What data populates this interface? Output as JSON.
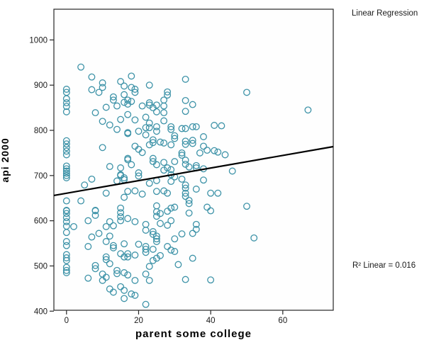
{
  "annotations": {
    "title": "Linear Regression",
    "r2": "R² Linear = 0.016"
  },
  "axes": {
    "x_title": "parent some college",
    "y_title": "api 2000"
  },
  "colors": {
    "marker": "#3E93A8",
    "regression_line": "#000000",
    "frame": "#262626",
    "tick_text": "#1a1a1a"
  },
  "chart_data": {
    "type": "scatter",
    "title": "Linear Regression",
    "xlabel": "parent some college",
    "ylabel": "api 2000",
    "x_ticks": [
      0,
      20,
      40,
      60
    ],
    "y_ticks": [
      400,
      500,
      600,
      700,
      800,
      900,
      1000
    ],
    "xlim": [
      -3.5,
      74
    ],
    "ylim": [
      402,
      1068
    ],
    "grid": false,
    "legend": "none",
    "marker_style": {
      "shape": "open-circle",
      "color": "#3E93A8",
      "radius": 4.3
    },
    "regression_line": {
      "x1": -3.5,
      "y1": 656,
      "x2": 74,
      "y2": 764,
      "slope": 1.39,
      "intercept": 661,
      "r2": 0.016
    },
    "points": [
      [
        4,
        940
      ],
      [
        7,
        918
      ],
      [
        18,
        920
      ],
      [
        7,
        890
      ],
      [
        10,
        905
      ],
      [
        10,
        895
      ],
      [
        9,
        884
      ],
      [
        15,
        908
      ],
      [
        16,
        898
      ],
      [
        18,
        895
      ],
      [
        19,
        891
      ],
      [
        19,
        884
      ],
      [
        0,
        891
      ],
      [
        0,
        884
      ],
      [
        0,
        870
      ],
      [
        0,
        861
      ],
      [
        0,
        853
      ],
      [
        13,
        874
      ],
      [
        13,
        867
      ],
      [
        16,
        879
      ],
      [
        17,
        867
      ],
      [
        16,
        862
      ],
      [
        17,
        858
      ],
      [
        18,
        864
      ],
      [
        11,
        851
      ],
      [
        14,
        854
      ],
      [
        21,
        854
      ],
      [
        33,
        913
      ],
      [
        23,
        900
      ],
      [
        28,
        885
      ],
      [
        28,
        878
      ],
      [
        27,
        867
      ],
      [
        23,
        861
      ],
      [
        23,
        856
      ],
      [
        25,
        856
      ],
      [
        33,
        866
      ],
      [
        35,
        857
      ],
      [
        27,
        854
      ],
      [
        24,
        850
      ],
      [
        50,
        884
      ],
      [
        67,
        845
      ],
      [
        0,
        841
      ],
      [
        8,
        839
      ],
      [
        17,
        835
      ],
      [
        22,
        829
      ],
      [
        10,
        820
      ],
      [
        12,
        812
      ],
      [
        15,
        824
      ],
      [
        19,
        823
      ],
      [
        14,
        802
      ],
      [
        17,
        795
      ],
      [
        17,
        793
      ],
      [
        20,
        798
      ],
      [
        22,
        806
      ],
      [
        22,
        790
      ],
      [
        0,
        777
      ],
      [
        0,
        770
      ],
      [
        0,
        762
      ],
      [
        0,
        754
      ],
      [
        0,
        746
      ],
      [
        10,
        762
      ],
      [
        19,
        765
      ],
      [
        20,
        758
      ],
      [
        21,
        751
      ],
      [
        17,
        738
      ],
      [
        17,
        735
      ],
      [
        18,
        724
      ],
      [
        12,
        720
      ],
      [
        0,
        721
      ],
      [
        0,
        715
      ],
      [
        0,
        710
      ],
      [
        0,
        705
      ],
      [
        0,
        700
      ],
      [
        0,
        695
      ],
      [
        15,
        717
      ],
      [
        15,
        702
      ],
      [
        15,
        700
      ],
      [
        20,
        706
      ],
      [
        20,
        699
      ],
      [
        16,
        695
      ],
      [
        16,
        691
      ],
      [
        14,
        688
      ],
      [
        7,
        692
      ],
      [
        5,
        679
      ],
      [
        11,
        661
      ],
      [
        17,
        665
      ],
      [
        19,
        666
      ],
      [
        21,
        659
      ],
      [
        16,
        652
      ],
      [
        0,
        644
      ],
      [
        4,
        644
      ],
      [
        8,
        623
      ],
      [
        0,
        623
      ],
      [
        15,
        628
      ],
      [
        25,
        841
      ],
      [
        27,
        839
      ],
      [
        33,
        842
      ],
      [
        23,
        816
      ],
      [
        23,
        806
      ],
      [
        25,
        808
      ],
      [
        25,
        798
      ],
      [
        27,
        821
      ],
      [
        29,
        808
      ],
      [
        29,
        802
      ],
      [
        32,
        804
      ],
      [
        33,
        804
      ],
      [
        35,
        808
      ],
      [
        36,
        808
      ],
      [
        41,
        811
      ],
      [
        43,
        810
      ],
      [
        30,
        788
      ],
      [
        30,
        782
      ],
      [
        27,
        772
      ],
      [
        29,
        768
      ],
      [
        26,
        774
      ],
      [
        24,
        779
      ],
      [
        24,
        773
      ],
      [
        33,
        776
      ],
      [
        33,
        769
      ],
      [
        35,
        778
      ],
      [
        35,
        771
      ],
      [
        38,
        786
      ],
      [
        38,
        765
      ],
      [
        39,
        756
      ],
      [
        37,
        750
      ],
      [
        41,
        755
      ],
      [
        42,
        752
      ],
      [
        44,
        746
      ],
      [
        32,
        750
      ],
      [
        32,
        745
      ],
      [
        33,
        734
      ],
      [
        33,
        725
      ],
      [
        30,
        731
      ],
      [
        27,
        729
      ],
      [
        25,
        724
      ],
      [
        24,
        738
      ],
      [
        24,
        731
      ],
      [
        28,
        717
      ],
      [
        27,
        712
      ],
      [
        29,
        713
      ],
      [
        34,
        719
      ],
      [
        36,
        722
      ],
      [
        36,
        717
      ],
      [
        38,
        715
      ],
      [
        46,
        710
      ],
      [
        29,
        702
      ],
      [
        30,
        697
      ],
      [
        32,
        692
      ],
      [
        29,
        687
      ],
      [
        25,
        689
      ],
      [
        38,
        690
      ],
      [
        36,
        670
      ],
      [
        33,
        679
      ],
      [
        33,
        672
      ],
      [
        25,
        665
      ],
      [
        27,
        666
      ],
      [
        28,
        661
      ],
      [
        33,
        661
      ],
      [
        33,
        654
      ],
      [
        40,
        661
      ],
      [
        42,
        661
      ],
      [
        34,
        645
      ],
      [
        34,
        638
      ],
      [
        25,
        633
      ],
      [
        29,
        628
      ],
      [
        30,
        630
      ],
      [
        39,
        630
      ],
      [
        23,
        683
      ],
      [
        23,
        768
      ],
      [
        50,
        632
      ],
      [
        0,
        622
      ],
      [
        0,
        616
      ],
      [
        8,
        622
      ],
      [
        15,
        618
      ],
      [
        2,
        587
      ],
      [
        0,
        607
      ],
      [
        0,
        598
      ],
      [
        0,
        588
      ],
      [
        0,
        574
      ],
      [
        0,
        554
      ],
      [
        0,
        545
      ],
      [
        0,
        525
      ],
      [
        0,
        518
      ],
      [
        0,
        512
      ],
      [
        0,
        497
      ],
      [
        0,
        490
      ],
      [
        0,
        485
      ],
      [
        6,
        600
      ],
      [
        8,
        612
      ],
      [
        12,
        598
      ],
      [
        11,
        587
      ],
      [
        13,
        589
      ],
      [
        15,
        609
      ],
      [
        15,
        600
      ],
      [
        17,
        605
      ],
      [
        19,
        598
      ],
      [
        22,
        592
      ],
      [
        22,
        579
      ],
      [
        6,
        543
      ],
      [
        7,
        564
      ],
      [
        9,
        572
      ],
      [
        12,
        566
      ],
      [
        11,
        554
      ],
      [
        13,
        545
      ],
      [
        13,
        540
      ],
      [
        16,
        549
      ],
      [
        20,
        548
      ],
      [
        22,
        543
      ],
      [
        22,
        537
      ],
      [
        22,
        530
      ],
      [
        15,
        527
      ],
      [
        17,
        527
      ],
      [
        16,
        520
      ],
      [
        17,
        520
      ],
      [
        19,
        524
      ],
      [
        11,
        520
      ],
      [
        11,
        514
      ],
      [
        12,
        505
      ],
      [
        8,
        501
      ],
      [
        8,
        494
      ],
      [
        6,
        473
      ],
      [
        10,
        482
      ],
      [
        11,
        475
      ],
      [
        10,
        468
      ],
      [
        14,
        490
      ],
      [
        14,
        483
      ],
      [
        16,
        485
      ],
      [
        17,
        480
      ],
      [
        22,
        482
      ],
      [
        19,
        468
      ],
      [
        15,
        454
      ],
      [
        12,
        449
      ],
      [
        13,
        442
      ],
      [
        16,
        446
      ],
      [
        18,
        438
      ],
      [
        19,
        435
      ],
      [
        16,
        428
      ],
      [
        25,
        620
      ],
      [
        26,
        616
      ],
      [
        25,
        610
      ],
      [
        28,
        621
      ],
      [
        34,
        617
      ],
      [
        40,
        622
      ],
      [
        29,
        600
      ],
      [
        26,
        594
      ],
      [
        28,
        590
      ],
      [
        36,
        592
      ],
      [
        36,
        581
      ],
      [
        35,
        572
      ],
      [
        32,
        571
      ],
      [
        24,
        576
      ],
      [
        24,
        570
      ],
      [
        25,
        566
      ],
      [
        25,
        560
      ],
      [
        25,
        554
      ],
      [
        30,
        560
      ],
      [
        28,
        543
      ],
      [
        29,
        535
      ],
      [
        30,
        532
      ],
      [
        24,
        537
      ],
      [
        26,
        523
      ],
      [
        25,
        517
      ],
      [
        24,
        512
      ],
      [
        35,
        517
      ],
      [
        31,
        503
      ],
      [
        23,
        499
      ],
      [
        33,
        470
      ],
      [
        40,
        469
      ],
      [
        23,
        468
      ],
      [
        22,
        415
      ],
      [
        52,
        562
      ]
    ]
  }
}
